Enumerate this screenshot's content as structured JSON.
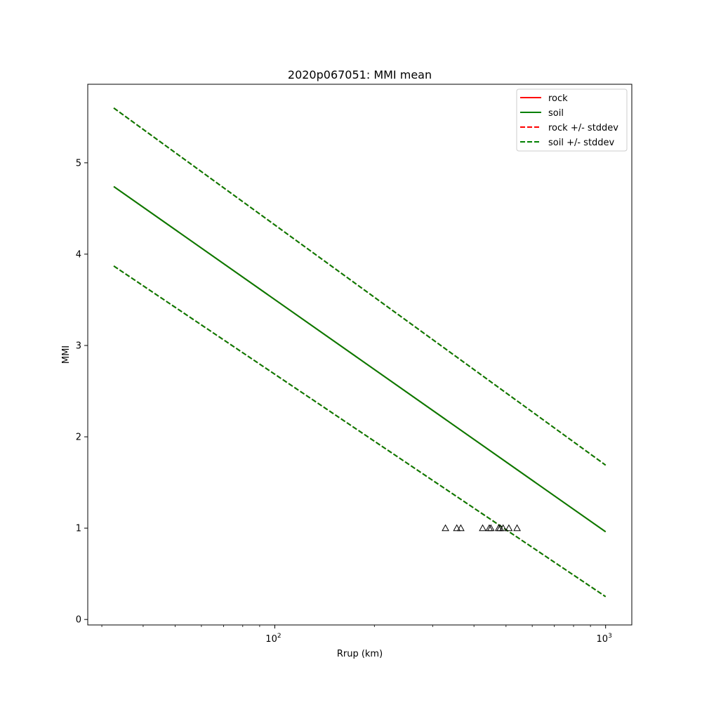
{
  "chart_data": {
    "type": "line",
    "title": "2020p067051: MMI mean",
    "xlabel": "Rrup (km)",
    "ylabel": "MMI",
    "xscale": "log",
    "xlim": [
      27.2,
      1200
    ],
    "ylim": [
      -0.06,
      5.86
    ],
    "grid": false,
    "legend_position": "top-right",
    "x_major_ticks": [
      {
        "value": 100,
        "base": "10",
        "exp": "2"
      },
      {
        "value": 1000,
        "base": "10",
        "exp": "3"
      }
    ],
    "x_minor_ticks": [
      30,
      40,
      50,
      60,
      70,
      80,
      90,
      200,
      300,
      400,
      500,
      600,
      700,
      800,
      900
    ],
    "y_ticks": [
      0,
      1,
      2,
      3,
      4,
      5
    ],
    "y_tick_labels": [
      "0",
      "1",
      "2",
      "3",
      "4",
      "5"
    ],
    "legend": [
      {
        "label": "rock",
        "color": "#ff0000",
        "dash": "solid"
      },
      {
        "label": "soil",
        "color": "#008000",
        "dash": "solid"
      },
      {
        "label": "rock +/- stddev",
        "color": "#ff0000",
        "dash": "dashed"
      },
      {
        "label": "soil +/- stddev",
        "color": "#008000",
        "dash": "dashed"
      }
    ],
    "series": [
      {
        "name": "rock",
        "color": "#ff0000",
        "dash": "solid",
        "x": [
          32.6,
          1000
        ],
        "y": [
          4.74,
          0.96
        ]
      },
      {
        "name": "rock +/- stddev",
        "color": "#ff0000",
        "dash": "dashed",
        "x": [
          32.6,
          1000
        ],
        "y": [
          5.6,
          1.69
        ]
      },
      {
        "name": "rock +/- stddev",
        "color": "#ff0000",
        "dash": "dashed",
        "x": [
          32.6,
          1000
        ],
        "y": [
          3.87,
          0.25
        ]
      },
      {
        "name": "soil",
        "color": "#008000",
        "dash": "solid",
        "x": [
          32.6,
          1000
        ],
        "y": [
          4.74,
          0.96
        ]
      },
      {
        "name": "soil +/- stddev",
        "color": "#008000",
        "dash": "dashed",
        "x": [
          32.6,
          1000
        ],
        "y": [
          5.6,
          1.69
        ]
      },
      {
        "name": "soil +/- stddev",
        "color": "#008000",
        "dash": "dashed",
        "x": [
          32.6,
          1000
        ],
        "y": [
          3.87,
          0.25
        ]
      }
    ],
    "observations": {
      "marker": "triangle-open",
      "color": "#000000",
      "x": [
        328,
        355,
        365,
        425,
        445,
        450,
        475,
        480,
        490,
        510,
        540
      ],
      "y": [
        1,
        1,
        1,
        1,
        1,
        1,
        1,
        1,
        1,
        1,
        1
      ]
    }
  }
}
